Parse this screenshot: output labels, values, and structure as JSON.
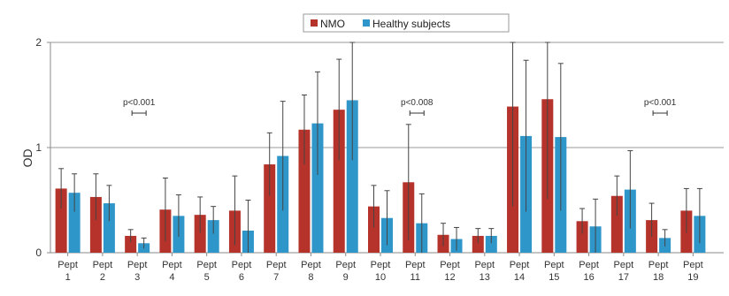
{
  "chart_data": {
    "type": "bar",
    "title": "",
    "xlabel": "",
    "ylabel": "OD",
    "ylim": [
      0,
      2
    ],
    "yticks": [
      0,
      1,
      2
    ],
    "grid": true,
    "legend_position": "top-center",
    "categories": [
      {
        "line1": "Pept",
        "line2": "1"
      },
      {
        "line1": "Pept",
        "line2": "2"
      },
      {
        "line1": "Pept",
        "line2": "3"
      },
      {
        "line1": "Pept",
        "line2": "4"
      },
      {
        "line1": "Pept",
        "line2": "5"
      },
      {
        "line1": "Pept",
        "line2": "6"
      },
      {
        "line1": "Pept",
        "line2": "7"
      },
      {
        "line1": "Pept",
        "line2": "8"
      },
      {
        "line1": "Pept",
        "line2": "9"
      },
      {
        "line1": "Pept",
        "line2": "10"
      },
      {
        "line1": "Pept",
        "line2": "11"
      },
      {
        "line1": "Pept",
        "line2": "12"
      },
      {
        "line1": "Pept",
        "line2": "13"
      },
      {
        "line1": "Pept",
        "line2": "14"
      },
      {
        "line1": "Pept",
        "line2": "15"
      },
      {
        "line1": "Pept",
        "line2": "16"
      },
      {
        "line1": "Pept",
        "line2": "17"
      },
      {
        "line1": "Pept",
        "line2": "18"
      },
      {
        "line1": "Pept",
        "line2": "19"
      }
    ],
    "series": [
      {
        "name": "NMO",
        "color": "#b5332a",
        "values": [
          0.61,
          0.53,
          0.16,
          0.41,
          0.36,
          0.4,
          0.84,
          1.17,
          1.36,
          0.44,
          0.67,
          0.17,
          0.16,
          1.39,
          1.46,
          0.3,
          0.54,
          0.31,
          0.4
        ],
        "errors": [
          0.19,
          0.22,
          0.06,
          0.3,
          0.17,
          0.33,
          0.3,
          0.33,
          0.48,
          0.2,
          0.55,
          0.11,
          0.07,
          0.95,
          0.95,
          0.12,
          0.19,
          0.16,
          0.21
        ]
      },
      {
        "name": "Healthy subjects",
        "color": "#2f96c9",
        "values": [
          0.57,
          0.47,
          0.09,
          0.35,
          0.31,
          0.21,
          0.92,
          1.23,
          1.45,
          0.33,
          0.28,
          0.13,
          0.16,
          1.11,
          1.1,
          0.25,
          0.6,
          0.14,
          0.35
        ],
        "errors": [
          0.18,
          0.17,
          0.05,
          0.2,
          0.13,
          0.29,
          0.52,
          0.49,
          0.57,
          0.26,
          0.28,
          0.11,
          0.07,
          0.72,
          0.7,
          0.26,
          0.37,
          0.08,
          0.26
        ]
      }
    ],
    "annotations": [
      {
        "text": "p<0.001",
        "between": [
          2,
          3
        ]
      },
      {
        "text": "p<0.008",
        "between": [
          10,
          11
        ]
      },
      {
        "text": "p<0.001",
        "between": [
          17,
          18
        ]
      }
    ]
  }
}
